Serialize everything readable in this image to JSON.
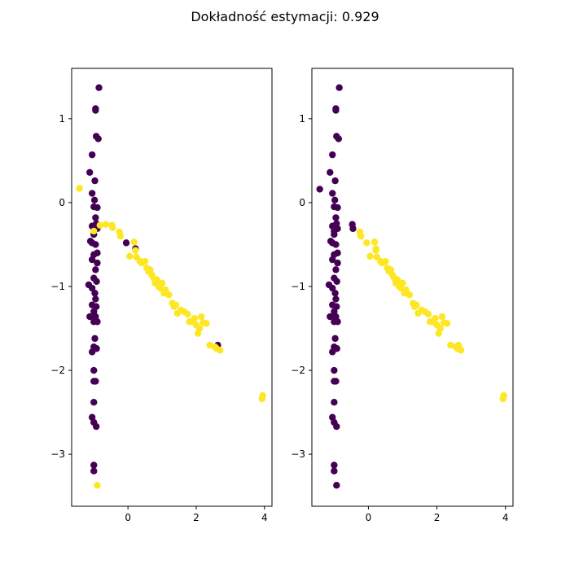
{
  "figure": {
    "title": "Dokładność estymacji: 0.929"
  },
  "colors": {
    "class_0": "#440154",
    "class_1": "#fde725",
    "axis": "#000000",
    "background": "#ffffff"
  },
  "chart_data": [
    {
      "type": "scatter",
      "title": "",
      "xlabel": "",
      "ylabel": "",
      "xlim": [
        -1.65,
        4.22
      ],
      "ylim": [
        -3.62,
        1.6
      ],
      "xticks": [
        0,
        2,
        4
      ],
      "yticks": [
        1,
        0,
        -1,
        -2,
        -3
      ],
      "grid": false,
      "series": [
        {
          "color_key": "class_0",
          "points": [
            [
              -0.85,
              1.37
            ],
            [
              -0.95,
              1.1
            ],
            [
              -0.95,
              1.12
            ],
            [
              -0.93,
              0.79
            ],
            [
              -0.87,
              0.76
            ],
            [
              -1.05,
              0.57
            ],
            [
              -1.12,
              0.36
            ],
            [
              -0.97,
              0.26
            ],
            [
              -1.05,
              0.11
            ],
            [
              -0.98,
              0.03
            ],
            [
              -1.0,
              -0.05
            ],
            [
              -0.9,
              -0.06
            ],
            [
              -0.95,
              -0.18
            ],
            [
              -0.93,
              -0.25
            ],
            [
              -1.05,
              -0.28
            ],
            [
              -0.9,
              -0.31
            ],
            [
              -1.0,
              -0.38
            ],
            [
              -1.1,
              -0.46
            ],
            [
              -1.05,
              -0.48
            ],
            [
              -0.95,
              -0.5
            ],
            [
              -0.9,
              -0.6
            ],
            [
              -1.0,
              -0.62
            ],
            [
              -1.05,
              -0.68
            ],
            [
              -0.9,
              -0.72
            ],
            [
              -0.95,
              -0.8
            ],
            [
              -1.0,
              -0.9
            ],
            [
              -0.92,
              -0.94
            ],
            [
              -1.15,
              -0.98
            ],
            [
              -1.05,
              -1.02
            ],
            [
              -0.97,
              -1.08
            ],
            [
              -0.95,
              -1.15
            ],
            [
              -1.05,
              -1.22
            ],
            [
              -0.93,
              -1.24
            ],
            [
              -1.0,
              -1.3
            ],
            [
              -0.95,
              -1.36
            ],
            [
              -1.12,
              -1.36
            ],
            [
              -1.0,
              -1.42
            ],
            [
              -0.9,
              -1.42
            ],
            [
              -0.97,
              -1.62
            ],
            [
              -1.0,
              -1.72
            ],
            [
              -0.92,
              -1.74
            ],
            [
              -1.05,
              -1.78
            ],
            [
              -1.0,
              -2.0
            ],
            [
              -1.0,
              -2.13
            ],
            [
              -0.95,
              -2.13
            ],
            [
              -1.0,
              -2.38
            ],
            [
              -1.05,
              -2.56
            ],
            [
              -1.0,
              -2.62
            ],
            [
              -0.93,
              -2.67
            ],
            [
              -1.0,
              -3.13
            ],
            [
              -1.0,
              -3.2
            ],
            [
              -0.05,
              -0.48
            ],
            [
              0.22,
              -0.55
            ],
            [
              2.63,
              -1.7
            ]
          ]
        },
        {
          "color_key": "class_1",
          "points": [
            [
              -1.42,
              0.17
            ],
            [
              -1.0,
              -0.34
            ],
            [
              -0.9,
              -3.37
            ],
            [
              -0.82,
              -0.27
            ],
            [
              -0.65,
              -0.26
            ],
            [
              -0.47,
              -0.27
            ],
            [
              -0.45,
              -0.3
            ],
            [
              -0.25,
              -0.35
            ],
            [
              -0.22,
              -0.4
            ],
            [
              0.05,
              -0.64
            ],
            [
              0.18,
              -0.47
            ],
            [
              0.22,
              -0.57
            ],
            [
              0.25,
              -0.65
            ],
            [
              0.35,
              -0.7
            ],
            [
              0.4,
              -0.72
            ],
            [
              0.5,
              -0.7
            ],
            [
              0.55,
              -0.78
            ],
            [
              0.6,
              -0.82
            ],
            [
              0.65,
              -0.8
            ],
            [
              0.7,
              -0.86
            ],
            [
              0.75,
              -0.9
            ],
            [
              0.8,
              -0.96
            ],
            [
              0.85,
              -0.92
            ],
            [
              0.9,
              -1.0
            ],
            [
              0.95,
              -1.02
            ],
            [
              1.0,
              -0.96
            ],
            [
              1.05,
              -1.08
            ],
            [
              1.1,
              -1.04
            ],
            [
              1.2,
              -1.1
            ],
            [
              1.3,
              -1.2
            ],
            [
              1.35,
              -1.24
            ],
            [
              1.4,
              -1.22
            ],
            [
              1.45,
              -1.32
            ],
            [
              1.55,
              -1.28
            ],
            [
              1.65,
              -1.3
            ],
            [
              1.75,
              -1.33
            ],
            [
              1.8,
              -1.42
            ],
            [
              1.9,
              -1.42
            ],
            [
              1.95,
              -1.38
            ],
            [
              2.0,
              -1.46
            ],
            [
              2.05,
              -1.56
            ],
            [
              2.1,
              -1.5
            ],
            [
              2.15,
              -1.36
            ],
            [
              2.2,
              -1.43
            ],
            [
              2.3,
              -1.44
            ],
            [
              2.4,
              -1.7
            ],
            [
              2.55,
              -1.72
            ],
            [
              2.6,
              -1.74
            ],
            [
              2.7,
              -1.76
            ],
            [
              3.95,
              -2.3
            ],
            [
              3.93,
              -2.34
            ]
          ]
        }
      ]
    },
    {
      "type": "scatter",
      "title": "",
      "xlabel": "",
      "ylabel": "",
      "xlim": [
        -1.65,
        4.22
      ],
      "ylim": [
        -3.62,
        1.6
      ],
      "xticks": [
        0,
        2,
        4
      ],
      "yticks": [
        1,
        0,
        -1,
        -2,
        -3
      ],
      "grid": false,
      "series": [
        {
          "color_key": "class_0",
          "points": [
            [
              -0.85,
              1.37
            ],
            [
              -0.95,
              1.1
            ],
            [
              -0.95,
              1.12
            ],
            [
              -0.93,
              0.79
            ],
            [
              -0.87,
              0.76
            ],
            [
              -1.05,
              0.57
            ],
            [
              -1.12,
              0.36
            ],
            [
              -0.97,
              0.26
            ],
            [
              -1.42,
              0.16
            ],
            [
              -1.05,
              0.11
            ],
            [
              -0.98,
              0.03
            ],
            [
              -1.0,
              -0.05
            ],
            [
              -0.9,
              -0.06
            ],
            [
              -0.95,
              -0.18
            ],
            [
              -0.93,
              -0.25
            ],
            [
              -0.47,
              -0.26
            ],
            [
              -0.45,
              -0.31
            ],
            [
              -1.05,
              -0.28
            ],
            [
              -1.0,
              -0.34
            ],
            [
              -0.9,
              -0.31
            ],
            [
              -1.0,
              -0.38
            ],
            [
              -1.1,
              -0.46
            ],
            [
              -1.05,
              -0.48
            ],
            [
              -0.95,
              -0.5
            ],
            [
              -0.9,
              -0.6
            ],
            [
              -1.0,
              -0.62
            ],
            [
              -1.05,
              -0.68
            ],
            [
              -0.9,
              -0.72
            ],
            [
              -0.95,
              -0.8
            ],
            [
              -1.0,
              -0.9
            ],
            [
              -0.92,
              -0.94
            ],
            [
              -1.15,
              -0.98
            ],
            [
              -1.05,
              -1.02
            ],
            [
              -0.97,
              -1.08
            ],
            [
              -0.95,
              -1.15
            ],
            [
              -1.05,
              -1.22
            ],
            [
              -0.93,
              -1.24
            ],
            [
              -1.0,
              -1.3
            ],
            [
              -0.95,
              -1.36
            ],
            [
              -1.12,
              -1.36
            ],
            [
              -1.0,
              -1.42
            ],
            [
              -0.9,
              -1.42
            ],
            [
              -0.97,
              -1.62
            ],
            [
              -1.0,
              -1.72
            ],
            [
              -0.92,
              -1.74
            ],
            [
              -1.05,
              -1.78
            ],
            [
              -1.0,
              -2.0
            ],
            [
              -1.0,
              -2.13
            ],
            [
              -0.95,
              -2.13
            ],
            [
              -1.0,
              -2.38
            ],
            [
              -1.05,
              -2.56
            ],
            [
              -1.0,
              -2.62
            ],
            [
              -0.93,
              -2.67
            ],
            [
              -1.0,
              -3.13
            ],
            [
              -1.0,
              -3.2
            ],
            [
              -0.93,
              -3.37
            ]
          ]
        },
        {
          "color_key": "class_1",
          "points": [
            [
              -0.25,
              -0.35
            ],
            [
              -0.22,
              -0.4
            ],
            [
              -0.05,
              -0.48
            ],
            [
              0.05,
              -0.64
            ],
            [
              0.18,
              -0.47
            ],
            [
              0.22,
              -0.55
            ],
            [
              0.22,
              -0.57
            ],
            [
              0.25,
              -0.65
            ],
            [
              0.35,
              -0.7
            ],
            [
              0.4,
              -0.72
            ],
            [
              0.5,
              -0.7
            ],
            [
              0.55,
              -0.78
            ],
            [
              0.6,
              -0.82
            ],
            [
              0.65,
              -0.8
            ],
            [
              0.7,
              -0.86
            ],
            [
              0.75,
              -0.9
            ],
            [
              0.8,
              -0.96
            ],
            [
              0.85,
              -0.92
            ],
            [
              0.9,
              -1.0
            ],
            [
              0.95,
              -1.02
            ],
            [
              1.0,
              -0.96
            ],
            [
              1.05,
              -1.08
            ],
            [
              1.1,
              -1.04
            ],
            [
              1.2,
              -1.1
            ],
            [
              1.3,
              -1.2
            ],
            [
              1.35,
              -1.24
            ],
            [
              1.4,
              -1.22
            ],
            [
              1.45,
              -1.32
            ],
            [
              1.55,
              -1.28
            ],
            [
              1.65,
              -1.3
            ],
            [
              1.75,
              -1.33
            ],
            [
              1.8,
              -1.42
            ],
            [
              1.9,
              -1.42
            ],
            [
              1.95,
              -1.38
            ],
            [
              2.0,
              -1.46
            ],
            [
              2.05,
              -1.56
            ],
            [
              2.1,
              -1.5
            ],
            [
              2.15,
              -1.36
            ],
            [
              2.2,
              -1.43
            ],
            [
              2.3,
              -1.44
            ],
            [
              2.4,
              -1.7
            ],
            [
              2.55,
              -1.72
            ],
            [
              2.6,
              -1.74
            ],
            [
              2.63,
              -1.7
            ],
            [
              2.7,
              -1.76
            ],
            [
              3.95,
              -2.3
            ],
            [
              3.93,
              -2.34
            ]
          ]
        }
      ]
    }
  ]
}
